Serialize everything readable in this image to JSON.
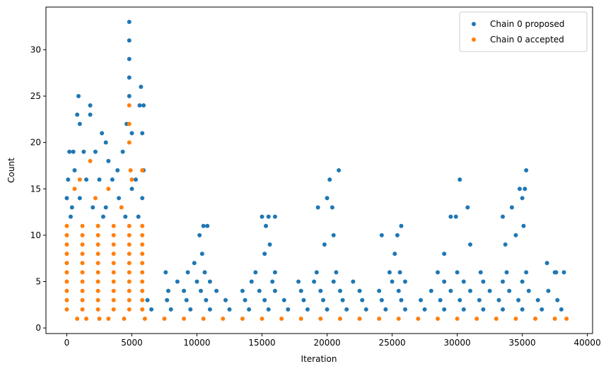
{
  "chart_data": {
    "type": "scatter",
    "xlabel": "Iteration",
    "ylabel": "Count",
    "xlim": [
      -1600,
      40400
    ],
    "ylim": [
      -0.6,
      34.6
    ],
    "xticks": [
      0,
      5000,
      10000,
      15000,
      20000,
      25000,
      30000,
      35000,
      40000
    ],
    "yticks": [
      0,
      5,
      10,
      15,
      20,
      25,
      30
    ],
    "legend": "upper right",
    "series": [
      {
        "name": "Chain 0 proposed",
        "color": "#1f77b4",
        "x": [
          900,
          800,
          1000,
          1800,
          1800,
          2700,
          3000,
          4600,
          4800,
          4800,
          4800,
          4800,
          4800,
          5700,
          5600,
          5900,
          5800,
          5000,
          200,
          500,
          1300,
          2200,
          3200,
          3900,
          4300,
          100,
          600,
          1500,
          2500,
          3500,
          5300,
          5900,
          0,
          400,
          1000,
          2000,
          3000,
          4000,
          5000,
          5800,
          300,
          2800,
          4500,
          5500,
          6500,
          8000,
          9500,
          11000,
          12500,
          14000,
          15500,
          17000,
          18500,
          20000,
          21500,
          23000,
          24500,
          26000,
          27500,
          29000,
          30500,
          32000,
          33500,
          35000,
          36500,
          38000,
          6200,
          7700,
          9200,
          10700,
          12200,
          13700,
          15200,
          16700,
          18200,
          19700,
          21200,
          22700,
          24200,
          25700,
          27200,
          28700,
          30200,
          31700,
          33200,
          34700,
          36200,
          37700,
          7800,
          9000,
          10300,
          11500,
          13500,
          14800,
          16000,
          18000,
          19500,
          21000,
          22500,
          24000,
          25500,
          28000,
          29500,
          31000,
          32500,
          34000,
          35500,
          37000,
          8500,
          10000,
          11000,
          14200,
          15800,
          17800,
          19000,
          20500,
          22000,
          25000,
          26000,
          29000,
          30500,
          32000,
          33500,
          35000,
          7600,
          9300,
          10600,
          14500,
          16000,
          19200,
          20700,
          24800,
          25600,
          28500,
          30000,
          31800,
          33800,
          35300,
          37500,
          9800,
          10400,
          15200,
          15600,
          19800,
          20500,
          25200,
          29000,
          31000,
          33700,
          34500,
          35100,
          10500,
          10800,
          10200,
          15000,
          15500,
          16000,
          15300,
          19300,
          20000,
          20200,
          20900,
          20400,
          24200,
          25700,
          25400,
          30200,
          29500,
          30800,
          29900,
          33500,
          34200,
          34800,
          35200,
          35300,
          35000,
          36900,
          37600,
          38200
        ],
        "values": [
          25,
          23,
          22,
          24,
          23,
          21,
          20,
          22,
          33,
          31,
          29,
          27,
          25,
          26,
          24,
          24,
          21,
          21,
          19,
          19,
          19,
          19,
          18,
          17,
          19,
          16,
          17,
          16,
          16,
          16,
          16,
          17,
          14,
          13,
          14,
          13,
          13,
          14,
          15,
          14,
          12,
          12,
          12,
          12,
          2,
          2,
          2,
          2,
          2,
          2,
          2,
          2,
          2,
          2,
          2,
          2,
          2,
          2,
          2,
          2,
          2,
          2,
          2,
          2,
          2,
          2,
          3,
          3,
          3,
          3,
          3,
          3,
          3,
          3,
          3,
          3,
          3,
          3,
          3,
          3,
          3,
          3,
          3,
          3,
          3,
          3,
          3,
          3,
          4,
          4,
          4,
          4,
          4,
          4,
          4,
          4,
          4,
          4,
          4,
          4,
          4,
          4,
          4,
          4,
          4,
          4,
          4,
          4,
          5,
          5,
          5,
          5,
          5,
          5,
          5,
          5,
          5,
          5,
          5,
          5,
          5,
          5,
          5,
          5,
          6,
          6,
          6,
          6,
          6,
          6,
          6,
          6,
          6,
          6,
          6,
          6,
          6,
          6,
          6,
          7,
          8,
          8,
          9,
          9,
          10,
          8,
          8,
          9,
          9,
          10,
          11,
          11,
          11,
          10,
          12,
          12,
          12,
          11,
          13,
          14,
          16,
          17,
          13,
          10,
          11,
          10,
          16,
          12,
          13,
          12,
          12,
          13,
          15,
          15,
          17,
          14,
          7,
          6,
          6
        ]
      },
      {
        "name": "Chain 0 accepted",
        "color": "#ff7f0e",
        "x": [
          0,
          1200,
          2400,
          3600,
          4800,
          5800,
          0,
          1200,
          2400,
          3600,
          4800,
          5800,
          0,
          1200,
          2400,
          3600,
          4800,
          5800,
          0,
          1200,
          2400,
          3600,
          4800,
          5800,
          0,
          1200,
          2400,
          3600,
          4800,
          5800,
          0,
          1200,
          2400,
          3600,
          4800,
          5800,
          0,
          1200,
          2400,
          3600,
          4800,
          5800,
          0,
          1200,
          2400,
          3600,
          4800,
          5800,
          0,
          1200,
          2400,
          3600,
          4800,
          5800,
          0,
          1200,
          2400,
          3600,
          4800,
          5800,
          4800,
          4800,
          4800,
          4900,
          5800,
          5000,
          1800,
          1000,
          3200,
          600,
          2200,
          4200,
          800,
          1500,
          2500,
          3200,
          4400,
          6000,
          7500,
          9000,
          10500,
          12000,
          13500,
          15000,
          16500,
          18000,
          19500,
          21000,
          22500,
          24000,
          25500,
          27000,
          28500,
          30000,
          31500,
          33000,
          34500,
          36000,
          37500,
          38400
        ],
        "values": [
          2,
          2,
          2,
          2,
          2,
          2,
          3,
          3,
          3,
          3,
          3,
          3,
          4,
          4,
          4,
          4,
          4,
          4,
          5,
          5,
          5,
          5,
          5,
          5,
          6,
          6,
          6,
          6,
          6,
          6,
          7,
          7,
          7,
          7,
          7,
          7,
          8,
          8,
          8,
          8,
          8,
          8,
          9,
          9,
          9,
          9,
          9,
          9,
          10,
          10,
          10,
          10,
          10,
          10,
          11,
          11,
          11,
          11,
          11,
          11,
          24,
          22,
          20,
          17,
          17,
          16,
          18,
          16,
          15,
          15,
          14,
          13,
          1,
          1,
          1,
          1,
          1,
          1,
          1,
          1,
          1,
          1,
          1,
          1,
          1,
          1,
          1,
          1,
          1,
          1,
          1,
          1,
          1,
          1,
          1,
          1,
          1,
          1,
          1,
          1
        ]
      }
    ]
  }
}
